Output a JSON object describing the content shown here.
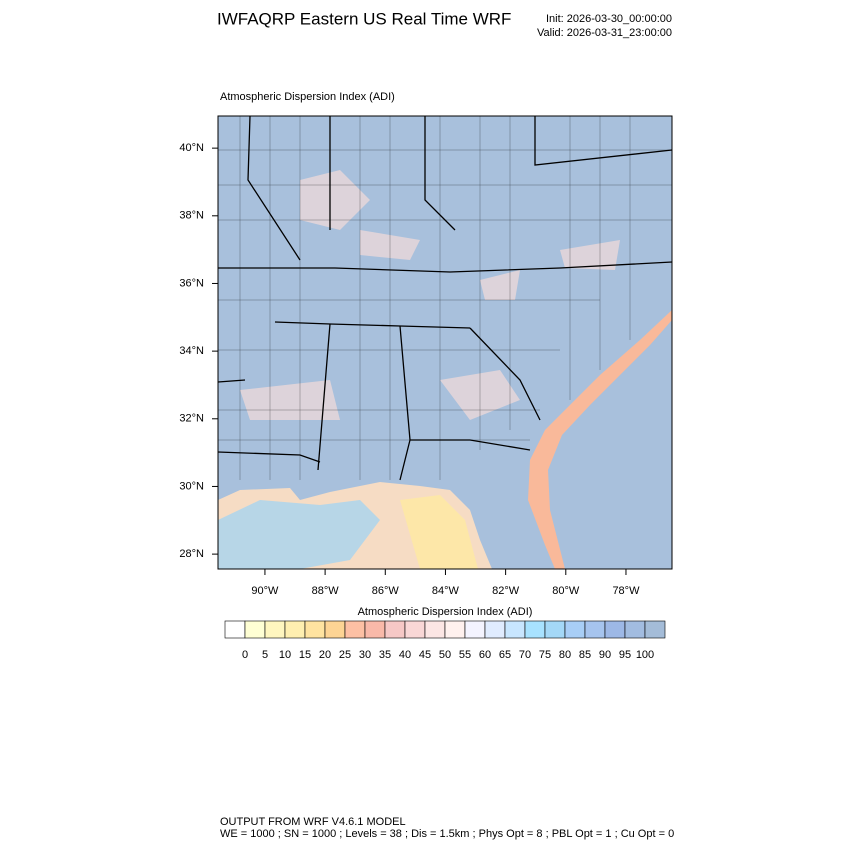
{
  "header": {
    "title": "IWFAQRP Eastern US Real Time WRF",
    "init": "Init: 2026-03-30_00:00:00",
    "valid": "Valid: 2026-03-31_23:00:00"
  },
  "map": {
    "title": "Atmospheric Dispersion Index   (ADI)",
    "lon_range": [
      -91.56,
      -76.47
    ],
    "lat_range": [
      27.56,
      40.95
    ],
    "lat_ticks": [
      {
        "value": 40,
        "label": "40°N"
      },
      {
        "value": 38,
        "label": "38°N"
      },
      {
        "value": 36,
        "label": "36°N"
      },
      {
        "value": 34,
        "label": "34°N"
      },
      {
        "value": 32,
        "label": "32°N"
      },
      {
        "value": 30,
        "label": "30°N"
      },
      {
        "value": 28,
        "label": "28°N"
      }
    ],
    "lon_ticks": [
      {
        "value": -90,
        "label": "90°W"
      },
      {
        "value": -88,
        "label": "88°W"
      },
      {
        "value": -86,
        "label": "86°W"
      },
      {
        "value": -84,
        "label": "84°W"
      },
      {
        "value": -82,
        "label": "82°W"
      },
      {
        "value": -80,
        "label": "80°W"
      },
      {
        "value": -78,
        "label": "78°W"
      }
    ]
  },
  "colorbar": {
    "title": "Atmospheric Dispersion Index  (ADI)",
    "levels": [
      0,
      5,
      10,
      15,
      20,
      25,
      30,
      35,
      40,
      45,
      50,
      55,
      60,
      65,
      70,
      75,
      80,
      85,
      90,
      95,
      100
    ],
    "colors": [
      "#ffffff",
      "#ffffd4",
      "#fff6bf",
      "#ffefb0",
      "#ffe3a0",
      "#fdd494",
      "#fdc0a4",
      "#f9b9a9",
      "#f6c8c6",
      "#f9d7d6",
      "#fce6e4",
      "#fff1ee",
      "#f4f4ff",
      "#e0ecff",
      "#c8e6ff",
      "#a8e2ff",
      "#a4d8f7",
      "#a8cef6",
      "#a6c4ee",
      "#9db8e6",
      "#a2bce0",
      "#a4bcd8"
    ]
  },
  "footer": {
    "line1": "OUTPUT FROM WRF V4.6.1 MODEL",
    "line2": "WE = 1000 ; SN = 1000 ; Levels = 38 ; Dis = 1.5km ; Phys Opt = 8 ; PBL Opt = 1 ; Cu Opt = 0"
  }
}
